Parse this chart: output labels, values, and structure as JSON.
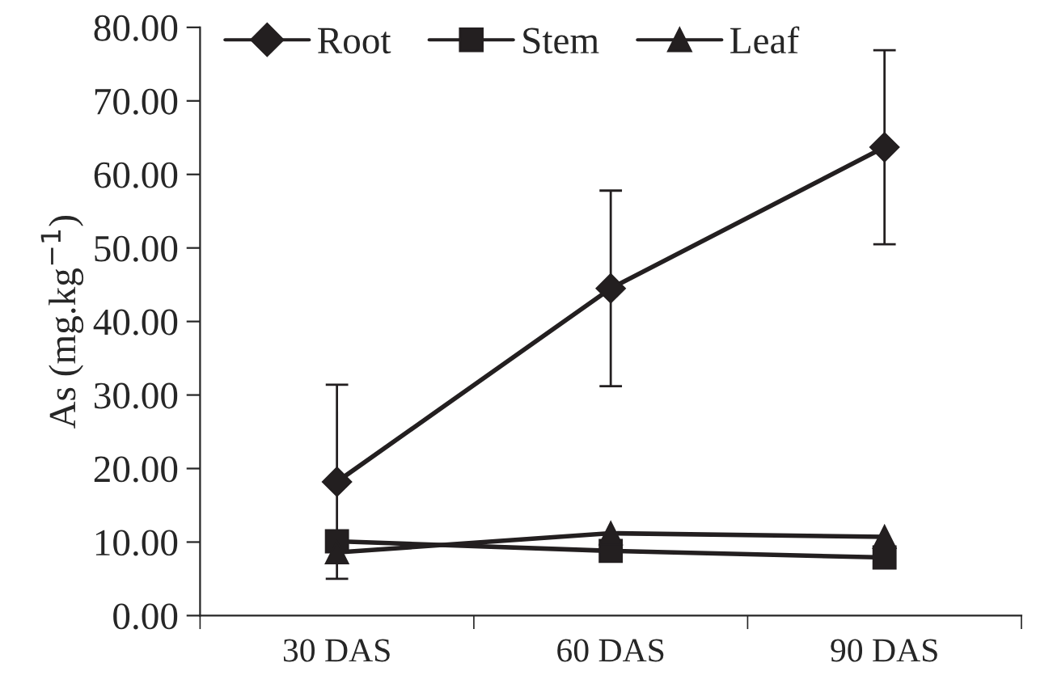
{
  "chart_data": {
    "type": "line",
    "ylabel": "As (mg.kg$^{−1}$)",
    "categories": [
      "30 DAS",
      "60 DAS",
      "90 DAS"
    ],
    "series": [
      {
        "name": "Root",
        "color": "#231f20",
        "marker": "diamond",
        "values": [
          18.2,
          44.5,
          63.7
        ],
        "errors": [
          13.2,
          13.3,
          13.2
        ]
      },
      {
        "name": "Stem",
        "color": "#231f20",
        "marker": "square",
        "values": [
          10.1,
          8.8,
          7.9
        ]
      },
      {
        "name": "Leaf",
        "color": "#231f20",
        "marker": "triangle",
        "values": [
          8.6,
          11.2,
          10.7
        ]
      }
    ],
    "ylim": [
      0,
      80
    ],
    "yticks": [
      {
        "value": 0,
        "label": "0.00"
      },
      {
        "value": 10,
        "label": "10.00"
      },
      {
        "value": 20,
        "label": "20.00"
      },
      {
        "value": 30,
        "label": "30.00"
      },
      {
        "value": 40,
        "label": "40.00"
      },
      {
        "value": 50,
        "label": "50.00"
      },
      {
        "value": 60,
        "label": "60.00"
      },
      {
        "value": 70,
        "label": "70.00"
      },
      {
        "value": 80,
        "label": "80.00"
      }
    ],
    "grid": false,
    "legend": "top"
  }
}
